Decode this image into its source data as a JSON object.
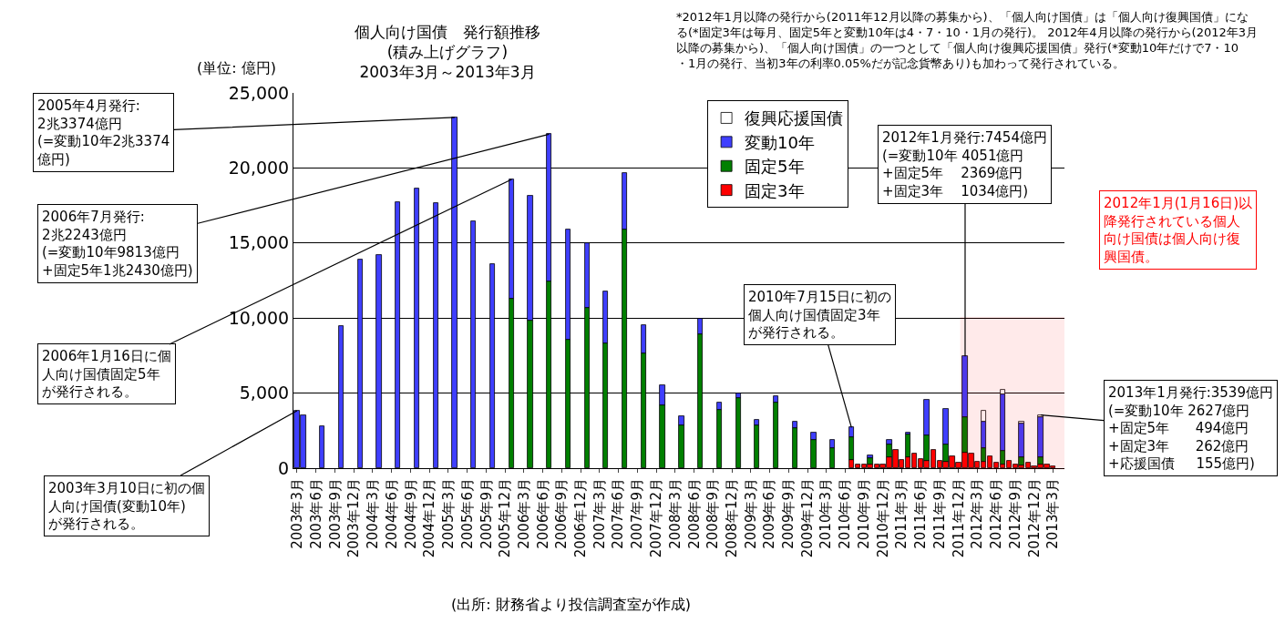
{
  "chart_data": {
    "type": "bar",
    "stacked": true,
    "title": "個人向け国債　発行額推移\n(積み上げグラフ)\n2003年3月～2013年3月",
    "ylabel": "(単位: 億円)",
    "x": [
      "2003-03",
      "2003-04",
      "2003-07",
      "2003-10",
      "2004-01",
      "2004-04",
      "2004-07",
      "2004-10",
      "2005-01",
      "2005-04",
      "2005-07",
      "2005-10",
      "2006-01",
      "2006-04",
      "2006-07",
      "2006-10",
      "2007-01",
      "2007-04",
      "2007-07",
      "2007-10",
      "2008-01",
      "2008-04",
      "2008-07",
      "2008-10",
      "2009-01",
      "2009-04",
      "2009-07",
      "2009-10",
      "2010-01",
      "2010-04",
      "2010-07",
      "2010-08",
      "2010-09",
      "2010-10",
      "2010-11",
      "2010-12",
      "2011-01",
      "2011-02",
      "2011-03",
      "2011-04",
      "2011-05",
      "2011-06",
      "2011-07",
      "2011-08",
      "2011-09",
      "2011-10",
      "2011-11",
      "2011-12",
      "2012-01",
      "2012-02",
      "2012-03",
      "2012-04",
      "2012-05",
      "2012-06",
      "2012-07",
      "2012-08",
      "2012-09",
      "2012-10",
      "2012-11",
      "2012-12",
      "2013-01",
      "2013-02",
      "2013-03"
    ],
    "series": [
      {
        "name": "固定3年",
        "color": "#ff0000",
        "values": [
          null,
          null,
          null,
          null,
          null,
          null,
          null,
          null,
          null,
          null,
          null,
          null,
          null,
          null,
          null,
          null,
          null,
          null,
          null,
          null,
          null,
          null,
          null,
          null,
          null,
          null,
          null,
          null,
          null,
          null,
          550,
          240,
          240,
          240,
          240,
          240,
          750,
          1190,
          550,
          750,
          990,
          590,
          490,
          1190,
          490,
          440,
          770,
          340,
          1034,
          990,
          440,
          440,
          770,
          340,
          240,
          490,
          240,
          200,
          340,
          140,
          262,
          240,
          100
        ]
      },
      {
        "name": "固定5年",
        "color": "#008000",
        "values": [
          null,
          null,
          null,
          null,
          null,
          null,
          null,
          null,
          null,
          null,
          null,
          null,
          11260,
          9840,
          12430,
          8530,
          10650,
          8330,
          15910,
          7620,
          4180,
          2870,
          8930,
          3880,
          4690,
          2870,
          4380,
          2670,
          1860,
          1350,
          1510,
          null,
          null,
          410,
          null,
          null,
          810,
          null,
          null,
          1470,
          null,
          null,
          1670,
          null,
          null,
          1120,
          null,
          null,
          2369,
          null,
          null,
          910,
          null,
          null,
          910,
          null,
          null,
          550,
          null,
          null,
          494,
          null,
          null
        ]
      },
      {
        "name": "変動10年",
        "color": "#3f3fff",
        "values": [
          3820,
          3520,
          2770,
          9480,
          13890,
          14190,
          17730,
          18640,
          17630,
          23374,
          16420,
          13580,
          7980,
          8290,
          9813,
          7380,
          4350,
          3440,
          3740,
          1920,
          1320,
          600,
          1020,
          500,
          300,
          360,
          410,
          400,
          510,
          510,
          650,
          null,
          null,
          200,
          null,
          null,
          340,
          null,
          null,
          160,
          null,
          null,
          2370,
          null,
          null,
          2360,
          null,
          null,
          4051,
          null,
          null,
          1760,
          null,
          null,
          3740,
          null,
          null,
          2220,
          null,
          null,
          2627,
          null,
          null
        ]
      },
      {
        "name": "復興応援国債",
        "color": "#ffffff",
        "values": [
          null,
          null,
          null,
          null,
          null,
          null,
          null,
          null,
          null,
          null,
          null,
          null,
          null,
          null,
          null,
          null,
          null,
          null,
          null,
          null,
          null,
          null,
          null,
          null,
          null,
          null,
          null,
          null,
          null,
          null,
          null,
          null,
          null,
          null,
          null,
          null,
          null,
          null,
          null,
          null,
          null,
          null,
          null,
          null,
          null,
          null,
          null,
          null,
          null,
          null,
          null,
          710,
          null,
          null,
          300,
          null,
          null,
          100,
          null,
          null,
          155,
          null,
          null
        ]
      }
    ],
    "xlim": [
      "2003-02-12",
      "2013-04-25"
    ],
    "xticks": [
      {
        "value": "2003-03",
        "label": "2003年3月"
      },
      {
        "value": "2003-06",
        "label": "2003年6月"
      },
      {
        "value": "2003-09",
        "label": "2003年9月"
      },
      {
        "value": "2003-12",
        "label": "2003年12月"
      },
      {
        "value": "2004-03",
        "label": "2004年3月"
      },
      {
        "value": "2004-06",
        "label": "2004年6月"
      },
      {
        "value": "2004-09",
        "label": "2004年9月"
      },
      {
        "value": "2004-12",
        "label": "2004年12月"
      },
      {
        "value": "2005-03",
        "label": "2005年3月"
      },
      {
        "value": "2005-06",
        "label": "2005年6月"
      },
      {
        "value": "2005-09",
        "label": "2005年9月"
      },
      {
        "value": "2005-12",
        "label": "2005年12月"
      },
      {
        "value": "2006-03",
        "label": "2006年3月"
      },
      {
        "value": "2006-06",
        "label": "2006年6月"
      },
      {
        "value": "2006-09",
        "label": "2006年9月"
      },
      {
        "value": "2006-12",
        "label": "2006年12月"
      },
      {
        "value": "2007-03",
        "label": "2007年3月"
      },
      {
        "value": "2007-06",
        "label": "2007年6月"
      },
      {
        "value": "2007-09",
        "label": "2007年9月"
      },
      {
        "value": "2007-12",
        "label": "2007年12月"
      },
      {
        "value": "2008-03",
        "label": "2008年3月"
      },
      {
        "value": "2008-06",
        "label": "2008年6月"
      },
      {
        "value": "2008-09",
        "label": "2008年9月"
      },
      {
        "value": "2008-12",
        "label": "2008年12月"
      },
      {
        "value": "2009-03",
        "label": "2009年3月"
      },
      {
        "value": "2009-06",
        "label": "2009年6月"
      },
      {
        "value": "2009-09",
        "label": "2009年9月"
      },
      {
        "value": "2009-12",
        "label": "2009年12月"
      },
      {
        "value": "2010-03",
        "label": "2010年3月"
      },
      {
        "value": "2010-06",
        "label": "2010年6月"
      },
      {
        "value": "2010-09",
        "label": "2010年9月"
      },
      {
        "value": "2010-12",
        "label": "2010年12月"
      },
      {
        "value": "2011-03",
        "label": "2011年3月"
      },
      {
        "value": "2011-06",
        "label": "2011年6月"
      },
      {
        "value": "2011-09",
        "label": "2011年9月"
      },
      {
        "value": "2011-12",
        "label": "2011年12月"
      },
      {
        "value": "2012-03",
        "label": "2012年3月"
      },
      {
        "value": "2012-06",
        "label": "2012年6月"
      },
      {
        "value": "2012-09",
        "label": "2012年9月"
      },
      {
        "value": "2012-12",
        "label": "2012年12月"
      },
      {
        "value": "2013-03",
        "label": "2013年3月"
      }
    ],
    "ylim": [
      0,
      25000
    ],
    "yticks": [
      0,
      {
        "value": 5000,
        "label": "5,000"
      },
      {
        "value": 10000,
        "label": "10,000"
      },
      {
        "value": 15000,
        "label": "15,000"
      },
      {
        "value": 20000,
        "label": "20,000"
      },
      {
        "value": 25000,
        "label": "25,000"
      }
    ],
    "grid": "y",
    "legend": "top right",
    "bands": [
      {
        "axis": "x",
        "from": "2011-12-15",
        "to": "2013-04-20",
        "label": "2012年1月(1月16日)以降発行されている個人向け国債は個人向け復興国債。",
        "color": "#ff0000"
      }
    ],
    "annotations": [
      {
        "text": "2005年4月発行:\n2兆3374億円\n(=変動10年2兆3374\n億円)",
        "x": "2005-04",
        "y": 23374
      },
      {
        "text": "2006年7月発行:\n2兆2243億円\n(=変動10年9813億円\n+固定5年1兆2430億円)",
        "x": "2006-07",
        "y": 22243
      },
      {
        "text": "2006年1月16日に個人向け国債固定5年が発行される。",
        "x": "2006-01",
        "y": 19240
      },
      {
        "text": "2003年3月10日に初の個人向け国債(変動10年)が発行される。",
        "x": "2003-03",
        "y": 3820
      },
      {
        "text": "2010年7月15日に初の個人向け国債固定3年が発行される。",
        "x": "2010-07",
        "y": 2710
      },
      {
        "text": "2012年1月発行:7454億円\n(=変動10年 4051億円\n+固定5年    2369億円\n+固定3年    1034億円)",
        "x": "2012-01",
        "y": 7454
      },
      {
        "text": "2013年1月発行:3539億円\n(=変動10年 2627億円\n+固定5年      494億円\n+固定3年      262億円\n+応援国債     155億円)",
        "x": "2013-01",
        "y": 3539
      },
      "*2012年1月以降の発行から(2011年12月以降の募集から)、「個人向け国債」は「個人向け復興国債」になる(*固定3年は毎月、固定5年と変動10年は4・7・10・1月の発行)。 2012年4月以降の発行から(2012年3月以降の募集から)、「個人向け国債」の一つとして「個人向け復興応援国債」発行(*変動10年だけで7・10・1月の発行、当初3年の利率0.05%だが記念貨幣あり)も加わって発行されている。",
      "(出所: 財務省より投信調査室が作成)"
    ]
  }
}
